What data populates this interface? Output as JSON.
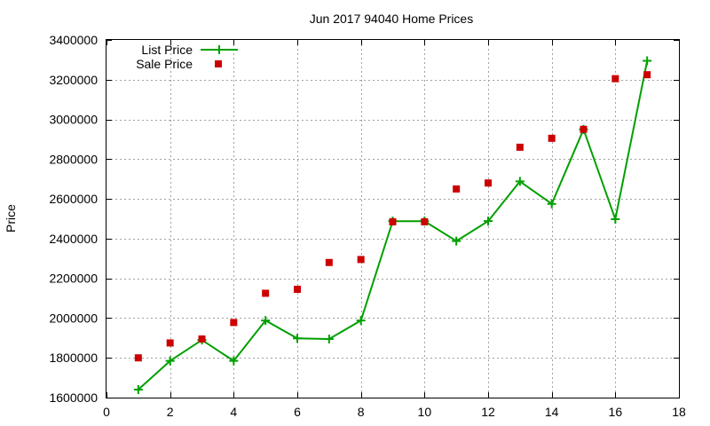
{
  "chart_data": {
    "type": "line",
    "title": "Jun 2017 94040 Home Prices",
    "xlabel": "",
    "ylabel": "Price",
    "xlim": [
      0,
      18
    ],
    "ylim": [
      1600000,
      3400000
    ],
    "x_ticks": [
      "0",
      "2",
      "4",
      "6",
      "8",
      "10",
      "12",
      "14",
      "16",
      "18"
    ],
    "y_ticks": [
      "1600000",
      "1800000",
      "2000000",
      "2200000",
      "2400000",
      "2600000",
      "2800000",
      "3000000",
      "3200000",
      "3400000"
    ],
    "grid": true,
    "legend_position": "top-left",
    "series": [
      {
        "name": "List Price",
        "style": "line-with-plus-markers",
        "color": "#00a000",
        "x": [
          1,
          2,
          3,
          4,
          5,
          6,
          7,
          8,
          9,
          10,
          11,
          12,
          13,
          14,
          15,
          16,
          17
        ],
        "values": [
          1640000,
          1785000,
          1890000,
          1785000,
          1988000,
          1898000,
          1895000,
          1988000,
          2488000,
          2488000,
          2388000,
          2488000,
          2688000,
          2575000,
          2950000,
          2498000,
          3295000
        ]
      },
      {
        "name": "Sale Price",
        "style": "square-markers",
        "color": "#cc0000",
        "x": [
          1,
          2,
          3,
          4,
          5,
          6,
          7,
          8,
          9,
          10,
          11,
          12,
          13,
          14,
          15,
          16,
          17
        ],
        "values": [
          1800000,
          1875000,
          1895000,
          1978000,
          2125000,
          2145000,
          2280000,
          2295000,
          2485000,
          2485000,
          2650000,
          2680000,
          2860000,
          2905000,
          2950000,
          3205000,
          3225000
        ]
      }
    ]
  }
}
